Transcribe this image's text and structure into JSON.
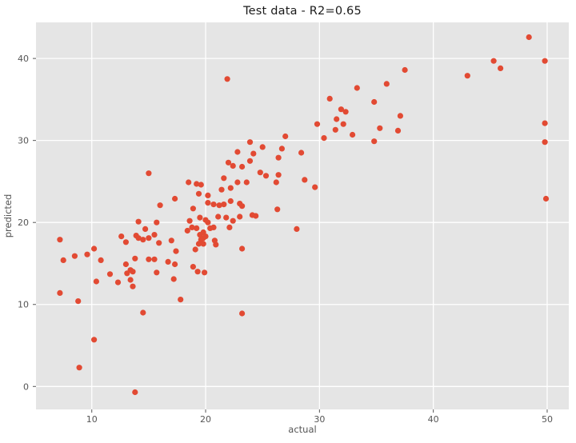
{
  "window": {
    "kind": "matplotlib-figure"
  },
  "chart": {
    "title": "Test data  -  R2=0.65",
    "xlabel": "actual",
    "ylabel": "predicted"
  },
  "chart_data": {
    "type": "scatter",
    "title": "Test data  -  R2=0.65",
    "subtitle_r2": 0.65,
    "xlabel": "actual",
    "ylabel": "predicted",
    "xlim": [
      5.1,
      51.9
    ],
    "ylim": [
      -2.8,
      44.4
    ],
    "xticks": [
      10,
      20,
      30,
      40,
      50
    ],
    "yticks": [
      0,
      10,
      20,
      30,
      40
    ],
    "grid": true,
    "legend": "none",
    "style": "ggplot",
    "marker_color": "#E24A33",
    "plot_bg_color": "#E5E5E5",
    "grid_color": "#FFFFFF",
    "tick_color": "#555555",
    "points": [
      [
        21.9,
        37.5
      ],
      [
        23.9,
        29.8
      ],
      [
        27.0,
        30.5
      ],
      [
        25.0,
        29.2
      ],
      [
        26.7,
        29.0
      ],
      [
        37.5,
        38.6
      ],
      [
        35.9,
        36.9
      ],
      [
        33.3,
        36.4
      ],
      [
        30.9,
        35.1
      ],
      [
        34.8,
        34.7
      ],
      [
        31.9,
        33.8
      ],
      [
        32.3,
        33.5
      ],
      [
        37.1,
        33.0
      ],
      [
        31.5,
        32.6
      ],
      [
        29.8,
        32.0
      ],
      [
        32.1,
        32.0
      ],
      [
        31.4,
        31.3
      ],
      [
        35.3,
        31.5
      ],
      [
        36.9,
        31.2
      ],
      [
        30.4,
        30.3
      ],
      [
        32.9,
        30.7
      ],
      [
        34.8,
        29.9
      ],
      [
        48.4,
        42.6
      ],
      [
        45.3,
        39.7
      ],
      [
        49.8,
        39.7
      ],
      [
        45.9,
        38.8
      ],
      [
        43.0,
        37.9
      ],
      [
        49.8,
        32.1
      ],
      [
        49.8,
        29.8
      ],
      [
        49.9,
        22.9
      ],
      [
        15.0,
        26.0
      ],
      [
        14.1,
        20.1
      ],
      [
        15.7,
        20.0
      ],
      [
        14.7,
        19.2
      ],
      [
        7.2,
        17.9
      ],
      [
        12.6,
        18.3
      ],
      [
        13.9,
        18.4
      ],
      [
        14.1,
        18.1
      ],
      [
        14.5,
        17.9
      ],
      [
        15.0,
        18.1
      ],
      [
        15.5,
        18.5
      ],
      [
        13.0,
        17.6
      ],
      [
        15.9,
        17.5
      ],
      [
        10.2,
        16.8
      ],
      [
        9.6,
        16.1
      ],
      [
        7.5,
        15.4
      ],
      [
        8.5,
        15.9
      ],
      [
        10.8,
        15.4
      ],
      [
        13.8,
        15.6
      ],
      [
        15.0,
        15.5
      ],
      [
        15.5,
        15.5
      ],
      [
        13.0,
        14.9
      ],
      [
        13.4,
        14.2
      ],
      [
        13.6,
        14.0
      ],
      [
        13.1,
        13.8
      ],
      [
        11.6,
        13.7
      ],
      [
        15.7,
        13.9
      ],
      [
        10.4,
        12.8
      ],
      [
        12.3,
        12.7
      ],
      [
        13.4,
        13.0
      ],
      [
        13.6,
        12.2
      ],
      [
        7.2,
        11.4
      ],
      [
        8.8,
        10.4
      ],
      [
        14.5,
        9.0
      ],
      [
        10.2,
        5.7
      ],
      [
        8.9,
        2.3
      ],
      [
        13.8,
        -0.7
      ],
      [
        17.2,
        13.1
      ],
      [
        17.8,
        10.6
      ],
      [
        23.2,
        8.9
      ],
      [
        22.8,
        28.6
      ],
      [
        24.2,
        28.4
      ],
      [
        26.4,
        27.9
      ],
      [
        22.0,
        27.3
      ],
      [
        22.4,
        26.9
      ],
      [
        23.9,
        27.5
      ],
      [
        23.2,
        26.8
      ],
      [
        24.8,
        26.1
      ],
      [
        25.3,
        25.7
      ],
      [
        26.4,
        25.8
      ],
      [
        18.5,
        24.9
      ],
      [
        19.2,
        24.7
      ],
      [
        19.6,
        24.6
      ],
      [
        21.6,
        25.4
      ],
      [
        22.8,
        24.9
      ],
      [
        23.6,
        24.9
      ],
      [
        26.2,
        24.9
      ],
      [
        22.2,
        24.2
      ],
      [
        21.4,
        24.0
      ],
      [
        19.4,
        23.5
      ],
      [
        17.3,
        22.9
      ],
      [
        16.0,
        22.1
      ],
      [
        20.2,
        23.3
      ],
      [
        20.2,
        22.4
      ],
      [
        20.7,
        22.2
      ],
      [
        21.2,
        22.1
      ],
      [
        21.6,
        22.2
      ],
      [
        22.2,
        22.6
      ],
      [
        23.0,
        22.3
      ],
      [
        23.2,
        22.0
      ],
      [
        18.9,
        21.7
      ],
      [
        19.5,
        20.6
      ],
      [
        18.6,
        20.2
      ],
      [
        21.1,
        20.7
      ],
      [
        21.8,
        20.6
      ],
      [
        22.4,
        20.2
      ],
      [
        23.0,
        20.7
      ],
      [
        24.1,
        20.9
      ],
      [
        24.4,
        20.8
      ],
      [
        26.3,
        21.6
      ],
      [
        20.0,
        20.3
      ],
      [
        20.2,
        20.0
      ],
      [
        18.8,
        19.4
      ],
      [
        19.2,
        19.3
      ],
      [
        18.4,
        19.0
      ],
      [
        20.4,
        19.3
      ],
      [
        20.7,
        19.4
      ],
      [
        22.1,
        19.4
      ],
      [
        19.8,
        18.8
      ],
      [
        19.5,
        18.5
      ],
      [
        19.8,
        18.1
      ],
      [
        20.0,
        18.3
      ],
      [
        19.6,
        17.9
      ],
      [
        19.4,
        17.4
      ],
      [
        19.8,
        17.4
      ],
      [
        20.8,
        17.8
      ],
      [
        20.9,
        17.3
      ],
      [
        19.1,
        16.7
      ],
      [
        17.4,
        16.5
      ],
      [
        17.0,
        17.8
      ],
      [
        23.2,
        16.8
      ],
      [
        16.7,
        15.2
      ],
      [
        17.3,
        14.9
      ],
      [
        18.9,
        14.6
      ],
      [
        19.3,
        14.0
      ],
      [
        19.9,
        13.9
      ],
      [
        28.4,
        28.5
      ],
      [
        28.7,
        25.2
      ],
      [
        29.6,
        24.3
      ],
      [
        28.0,
        19.2
      ]
    ]
  }
}
